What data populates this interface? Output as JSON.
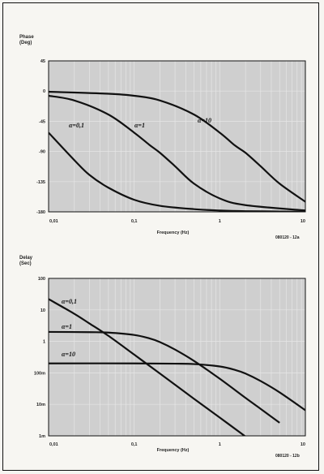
{
  "colors": {
    "plot_bg": "#cfcfcf",
    "curve": "#111111",
    "frame": "#111111",
    "grid": "#e6e6e6"
  },
  "chart_data": [
    {
      "type": "line",
      "ylabel": "Phase",
      "yunit": "(Deg)",
      "xlabel": "Frequency (Hz)",
      "reference": "080120 - 12a",
      "xscale": "log",
      "xlim": [
        0.01,
        10
      ],
      "ylim": [
        -180,
        45
      ],
      "xticks": [
        0.01,
        0.1,
        1,
        10
      ],
      "xtick_labels": [
        "0,01",
        "0,1",
        "1",
        "10"
      ],
      "yticks": [
        45,
        0,
        -45,
        -90,
        -135,
        -180
      ],
      "ytick_labels": [
        "45",
        "0",
        "-45",
        "-90",
        "-135",
        "-180"
      ],
      "grid": true,
      "series": [
        {
          "label": "α=0,1",
          "x": [
            0.01,
            0.02,
            0.03,
            0.05,
            0.1,
            0.2,
            0.5,
            1,
            2,
            5,
            10
          ],
          "y": [
            -62,
            -103,
            -125,
            -144,
            -162,
            -171,
            -176,
            -178,
            -179,
            -179.5,
            -180
          ]
        },
        {
          "label": "α=1",
          "x": [
            0.01,
            0.02,
            0.05,
            0.1,
            0.15,
            0.2,
            0.3,
            0.5,
            1,
            2,
            10
          ],
          "y": [
            -7,
            -14,
            -35,
            -62,
            -80,
            -92,
            -112,
            -138,
            -160,
            -170,
            -178
          ]
        },
        {
          "label": "α=10",
          "x": [
            0.01,
            0.05,
            0.1,
            0.2,
            0.5,
            1,
            1.5,
            2,
            3,
            5,
            10
          ],
          "y": [
            -1,
            -4,
            -7,
            -14,
            -35,
            -62,
            -81,
            -92,
            -112,
            -138,
            -165
          ]
        }
      ]
    },
    {
      "type": "line",
      "ylabel": "Delay",
      "yunit": "(Sec)",
      "xlabel": "Frequency (Hz)",
      "reference": "080120 - 12b",
      "xscale": "log",
      "yscale": "log",
      "xlim": [
        0.01,
        10
      ],
      "ylim": [
        0.001,
        100
      ],
      "xticks": [
        0.01,
        0.1,
        1,
        10
      ],
      "xtick_labels": [
        "0,01",
        "0,1",
        "1",
        "10"
      ],
      "yticks": [
        100,
        10,
        1,
        0.1,
        0.01,
        0.001
      ],
      "ytick_labels": [
        "100",
        "10",
        "1",
        "100m",
        "10m",
        "1m"
      ],
      "grid": true,
      "series": [
        {
          "label": "α=0,1",
          "x": [
            0.01,
            0.02,
            0.03,
            0.05,
            0.1,
            0.2,
            0.5,
            1,
            2,
            3
          ],
          "y": [
            22,
            7.5,
            3.7,
            1.5,
            0.38,
            0.095,
            0.015,
            0.0038,
            0.00095,
            0.00042
          ]
        },
        {
          "label": "α=1",
          "x": [
            0.01,
            0.03,
            0.05,
            0.1,
            0.15,
            0.2,
            0.3,
            0.5,
            1,
            2,
            3,
            5
          ],
          "y": [
            2,
            1.96,
            1.9,
            1.6,
            1.25,
            0.95,
            0.55,
            0.24,
            0.065,
            0.016,
            0.0072,
            0.0026
          ]
        },
        {
          "label": "α=10",
          "x": [
            0.01,
            0.1,
            0.3,
            0.5,
            1,
            1.5,
            2,
            3,
            5,
            10
          ],
          "y": [
            0.2,
            0.2,
            0.196,
            0.19,
            0.16,
            0.125,
            0.095,
            0.055,
            0.024,
            0.0065
          ]
        }
      ]
    }
  ]
}
